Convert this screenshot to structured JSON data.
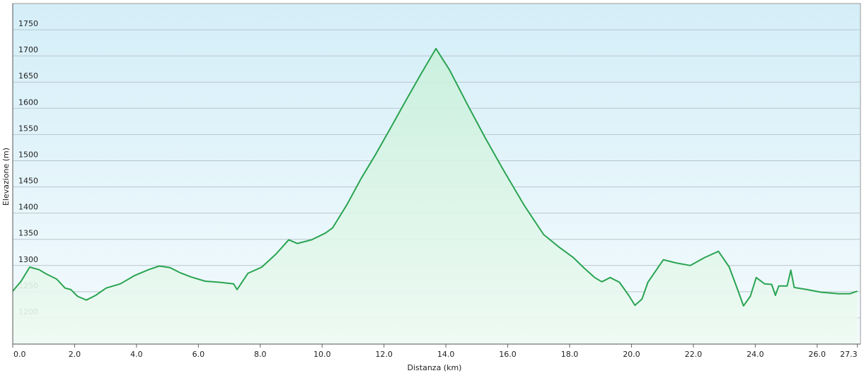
{
  "chart_data": {
    "type": "area",
    "x_label": "Distanza  (km)",
    "y_label": "Elevazione (m)",
    "color": "#2aa452",
    "fill": "#d8f5e4",
    "x": [
      0,
      0.27,
      0.55,
      0.85,
      1.08,
      1.42,
      1.69,
      1.88,
      2.1,
      2.38,
      2.68,
      3.02,
      3.48,
      3.94,
      4.39,
      4.74,
      5.08,
      5.42,
      5.77,
      6.22,
      6.68,
      7.14,
      7.25,
      7.6,
      8.05,
      8.51,
      8.92,
      9.2,
      9.66,
      10.11,
      10.34,
      10.8,
      11.26,
      11.72,
      12.17,
      12.68,
      13.2,
      13.68,
      14.12,
      14.69,
      15.26,
      15.84,
      16.52,
      17.16,
      17.66,
      18.12,
      18.47,
      18.81,
      19.04,
      19.31,
      19.61,
      19.91,
      20.11,
      20.34,
      20.53,
      21.03,
      21.44,
      21.9,
      22.36,
      22.81,
      23.16,
      23.43,
      23.62,
      23.84,
      24.03,
      24.3,
      24.53,
      24.65,
      24.76,
      25.03,
      25.15,
      25.26,
      25.68,
      26.13,
      26.7,
      27.05,
      27.3
    ],
    "values": [
      1251,
      1270,
      1297,
      1292,
      1284,
      1274,
      1257,
      1254,
      1241,
      1234,
      1243,
      1257,
      1265,
      1281,
      1292,
      1299,
      1296,
      1286,
      1278,
      1270,
      1268,
      1265,
      1254,
      1285,
      1297,
      1322,
      1349,
      1342,
      1349,
      1362,
      1372,
      1416,
      1466,
      1511,
      1558,
      1612,
      1666,
      1714,
      1673,
      1608,
      1545,
      1484,
      1416,
      1359,
      1335,
      1315,
      1295,
      1277,
      1269,
      1277,
      1268,
      1243,
      1224,
      1236,
      1268,
      1311,
      1305,
      1300,
      1315,
      1327,
      1297,
      1254,
      1223,
      1241,
      1277,
      1265,
      1264,
      1243,
      1261,
      1261,
      1291,
      1258,
      1254,
      1249,
      1246,
      1246,
      1251
    ],
    "xlim": [
      0,
      27.4
    ],
    "ylim": [
      1150,
      1800
    ],
    "xticks": [
      {
        "value": 0,
        "label": "0.0"
      },
      {
        "value": 2,
        "label": "2.0"
      },
      {
        "value": 4,
        "label": "4.0"
      },
      {
        "value": 6,
        "label": "6.0"
      },
      {
        "value": 8,
        "label": "8.0"
      },
      {
        "value": 10,
        "label": "10.0"
      },
      {
        "value": 12,
        "label": "12.0"
      },
      {
        "value": 14,
        "label": "14.0"
      },
      {
        "value": 16,
        "label": "16.0"
      },
      {
        "value": 18,
        "label": "18.0"
      },
      {
        "value": 20,
        "label": "20.0"
      },
      {
        "value": 22,
        "label": "22.0"
      },
      {
        "value": 24,
        "label": "24.0"
      },
      {
        "value": 26,
        "label": "26.0"
      },
      27.3
    ],
    "yticks": [
      1200,
      1250,
      1300,
      1350,
      1400,
      1450,
      1500,
      1550,
      1600,
      1650,
      1700,
      1750
    ],
    "grid": true
  }
}
